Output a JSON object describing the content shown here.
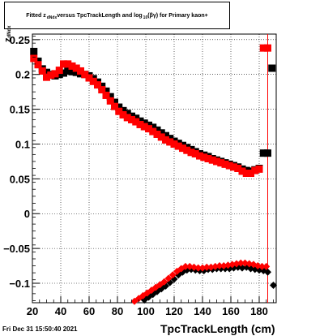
{
  "title": {
    "prefix": "Fitted  z",
    "sub1": "dNdx",
    "middle": "  versus TpcTrackLength and log",
    "sub2": "10",
    "suffix": "(βγ) for Primary kaon+"
  },
  "datestamp": "Fri Dec 31 15:50:40 2021",
  "chart_data": {
    "type": "scatter",
    "xlabel": "TpcTrackLength (cm)",
    "ylabel_main": "z",
    "ylabel_sub": "dNdx",
    "xlim": [
      20,
      192
    ],
    "ylim": [
      -0.128,
      0.258
    ],
    "xticks": [
      20,
      40,
      60,
      80,
      100,
      120,
      140,
      160,
      180
    ],
    "yticks": [
      -0.1,
      -0.05,
      0,
      0.05,
      0.1,
      0.15,
      0.2,
      0.25
    ],
    "ytick_labels": [
      "−0.1",
      "−0.05",
      "0",
      "0.05",
      "0.1",
      "0.15",
      "0.2",
      "0.25"
    ],
    "grid": true,
    "vline_x": 186,
    "series": [
      {
        "marker": "square",
        "color": "#000000",
        "x": [
          21,
          24,
          27,
          30,
          33,
          36,
          39,
          42,
          45,
          48,
          51,
          54,
          57,
          60,
          63,
          66,
          69,
          72,
          75,
          78,
          81,
          84,
          87,
          90,
          93,
          96,
          99,
          102,
          105,
          108,
          111,
          114,
          117,
          120,
          123,
          126,
          129,
          132,
          135,
          138,
          141,
          144,
          147,
          150,
          153,
          156,
          159,
          162,
          165,
          168,
          171,
          174,
          177,
          180,
          183,
          186,
          189
        ],
        "y": [
          0.233,
          0.219,
          0.208,
          0.203,
          0.2,
          0.198,
          0.2,
          0.202,
          0.205,
          0.204,
          0.203,
          0.201,
          0.2,
          0.198,
          0.194,
          0.189,
          0.183,
          0.176,
          0.168,
          0.16,
          0.153,
          0.148,
          0.144,
          0.14,
          0.137,
          0.133,
          0.13,
          0.127,
          0.124,
          0.12,
          0.116,
          0.112,
          0.108,
          0.104,
          0.101,
          0.098,
          0.095,
          0.092,
          0.089,
          0.086,
          0.084,
          0.082,
          0.079,
          0.077,
          0.075,
          0.073,
          0.071,
          0.069,
          0.067,
          0.064,
          0.062,
          0.061,
          0.063,
          0.065,
          0.087,
          0.087,
          0.209
        ]
      },
      {
        "marker": "square",
        "color": "#ff0000",
        "x": [
          21,
          24,
          27,
          30,
          33,
          36,
          39,
          42,
          45,
          48,
          51,
          54,
          57,
          60,
          63,
          66,
          69,
          72,
          75,
          78,
          81,
          84,
          87,
          90,
          93,
          96,
          99,
          102,
          105,
          108,
          111,
          114,
          117,
          120,
          123,
          126,
          129,
          132,
          135,
          138,
          141,
          144,
          147,
          150,
          153,
          156,
          159,
          162,
          165,
          168,
          171,
          174,
          177,
          180,
          183,
          186
        ],
        "y": [
          0.223,
          0.214,
          0.205,
          0.196,
          0.199,
          0.201,
          0.206,
          0.215,
          0.215,
          0.212,
          0.209,
          0.205,
          0.2,
          0.195,
          0.19,
          0.185,
          0.178,
          0.17,
          0.162,
          0.154,
          0.147,
          0.142,
          0.138,
          0.135,
          0.132,
          0.128,
          0.125,
          0.122,
          0.118,
          0.114,
          0.11,
          0.106,
          0.103,
          0.1,
          0.097,
          0.094,
          0.091,
          0.088,
          0.086,
          0.083,
          0.081,
          0.079,
          0.077,
          0.075,
          0.073,
          0.071,
          0.069,
          0.067,
          0.065,
          0.061,
          0.058,
          0.058,
          0.062,
          0.064,
          0.238,
          0.238
        ]
      },
      {
        "marker": "diamond",
        "color": "#000000",
        "x": [
          99,
          102,
          105,
          108,
          111,
          114,
          117,
          120,
          123,
          126,
          129,
          132,
          135,
          138,
          141,
          144,
          147,
          150,
          153,
          156,
          159,
          162,
          165,
          168,
          171,
          174,
          177,
          180,
          183,
          186,
          190
        ],
        "y": [
          -0.124,
          -0.12,
          -0.116,
          -0.112,
          -0.108,
          -0.104,
          -0.099,
          -0.094,
          -0.088,
          -0.084,
          -0.081,
          -0.08,
          -0.081,
          -0.082,
          -0.082,
          -0.08,
          -0.08,
          -0.079,
          -0.079,
          -0.079,
          -0.079,
          -0.078,
          -0.077,
          -0.078,
          -0.077,
          -0.079,
          -0.08,
          -0.081,
          -0.082,
          -0.084,
          -0.103
        ]
      },
      {
        "marker": "diamond",
        "color": "#ff0000",
        "x": [
          92,
          95,
          98,
          101,
          104,
          107,
          110,
          113,
          116,
          119,
          122,
          125,
          128,
          131,
          134,
          137,
          140,
          143,
          146,
          149,
          152,
          155,
          158,
          161,
          164,
          167,
          170,
          173,
          176,
          179,
          182,
          185
        ],
        "y": [
          -0.126,
          -0.122,
          -0.118,
          -0.114,
          -0.11,
          -0.106,
          -0.102,
          -0.098,
          -0.093,
          -0.088,
          -0.083,
          -0.079,
          -0.076,
          -0.076,
          -0.077,
          -0.078,
          -0.078,
          -0.077,
          -0.077,
          -0.076,
          -0.075,
          -0.075,
          -0.074,
          -0.073,
          -0.072,
          -0.071,
          -0.071,
          -0.072,
          -0.073,
          -0.075,
          -0.076,
          -0.076
        ]
      }
    ]
  }
}
